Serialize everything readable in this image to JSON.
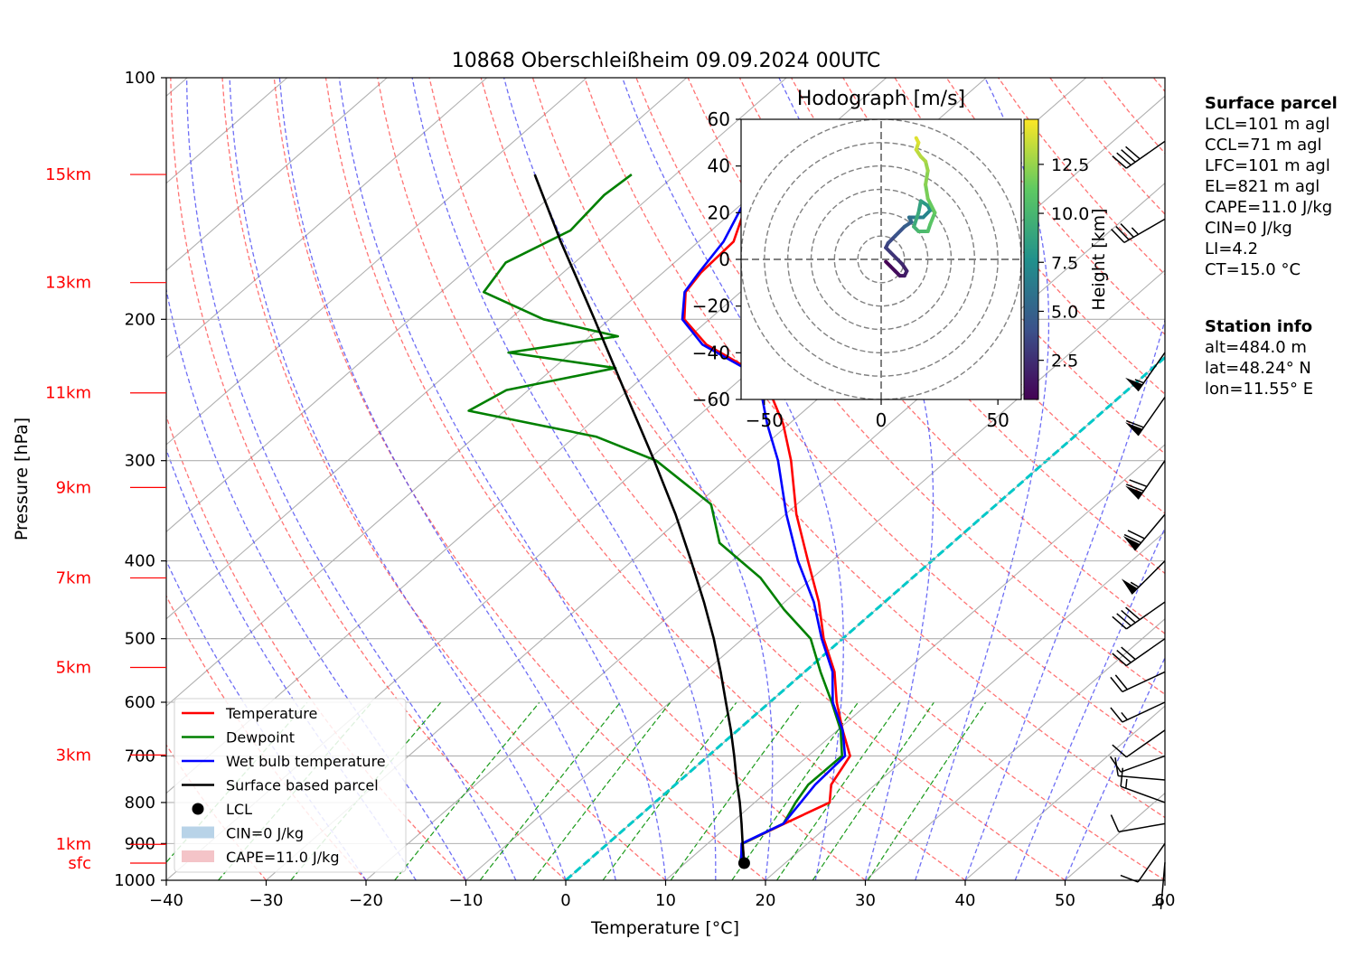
{
  "chart_data": [
    {
      "type": "line",
      "chart": "skew-T log-p diagram",
      "title": "10868 Oberschleißheim 09.09.2024 00UTC",
      "xlabel": "Temperature [°C]",
      "ylabel": "Pressure [hPa]",
      "x_scale": "linear (skewed)",
      "y_scale": "log",
      "xlim": [
        -40,
        60
      ],
      "ylim": [
        1000,
        100
      ],
      "x_ticks": [
        "−40",
        "−30",
        "−20",
        "−10",
        "0",
        "10",
        "20",
        "30",
        "40",
        "50",
        "60"
      ],
      "y_ticks": [
        "100",
        "200",
        "300",
        "400",
        "500",
        "600",
        "700",
        "800",
        "900",
        "1000"
      ],
      "grid": true,
      "height_labels": [
        {
          "label": "sfc",
          "p": 952
        },
        {
          "label": "1km",
          "p": 902
        },
        {
          "label": "3km",
          "p": 698
        },
        {
          "label": "5km",
          "p": 543
        },
        {
          "label": "7km",
          "p": 420
        },
        {
          "label": "9km",
          "p": 324
        },
        {
          "label": "11km",
          "p": 247
        },
        {
          "label": "13km",
          "p": 180
        },
        {
          "label": "15km",
          "p": 132
        }
      ],
      "series": [
        {
          "name": "Temperature",
          "color": "#ff0000",
          "points": [
            [
              952,
              15.9
            ],
            [
              900,
              13.5
            ],
            [
              850,
              15.4
            ],
            [
              800,
              17.5
            ],
            [
              760,
              15.6
            ],
            [
              700,
              14.2
            ],
            [
              650,
              10.5
            ],
            [
              600,
              6.7
            ],
            [
              550,
              3.0
            ],
            [
              500,
              -1.9
            ],
            [
              450,
              -6.6
            ],
            [
              400,
              -12.4
            ],
            [
              350,
              -18.9
            ],
            [
              300,
              -25.6
            ],
            [
              270,
              -30.6
            ],
            [
              250,
              -34.8
            ],
            [
              230,
              -40.6
            ],
            [
              215,
              -47.4
            ],
            [
              200,
              -52.5
            ],
            [
              185,
              -55.5
            ],
            [
              175,
              -56.2
            ],
            [
              160,
              -56.5
            ],
            [
              150,
              -58.3
            ],
            [
              140,
              -59.8
            ],
            [
              130,
              -62.1
            ]
          ]
        },
        {
          "name": "Dewpoint",
          "color": "#008000",
          "points": [
            [
              952,
              15.5
            ],
            [
              900,
              13.5
            ],
            [
              850,
              15.3
            ],
            [
              800,
              14.1
            ],
            [
              760,
              13.3
            ],
            [
              700,
              13.4
            ],
            [
              650,
              10.3
            ],
            [
              600,
              6.2
            ],
            [
              550,
              1.6
            ],
            [
              500,
              -3.2
            ],
            [
              460,
              -9.2
            ],
            [
              420,
              -15.2
            ],
            [
              380,
              -23.3
            ],
            [
              340,
              -28.6
            ],
            [
              300,
              -39.1
            ],
            [
              280,
              -47.9
            ],
            [
              260,
              -63.6
            ],
            [
              245,
              -62.2
            ],
            [
              230,
              -53.8
            ],
            [
              220,
              -66.3
            ],
            [
              210,
              -57.2
            ],
            [
              200,
              -66.6
            ],
            [
              185,
              -75.7
            ],
            [
              170,
              -76.9
            ],
            [
              155,
              -74.1
            ],
            [
              140,
              -74.8
            ],
            [
              132,
              -74.4
            ]
          ]
        },
        {
          "name": "Wet bulb temperature",
          "color": "#0000ff",
          "points": [
            [
              952,
              15.6
            ],
            [
              900,
              13.4
            ],
            [
              850,
              15.3
            ],
            [
              800,
              14.6
            ],
            [
              760,
              14.0
            ],
            [
              700,
              13.7
            ],
            [
              650,
              10.5
            ],
            [
              600,
              6.3
            ],
            [
              550,
              2.8
            ],
            [
              500,
              -2.1
            ],
            [
              450,
              -7.1
            ],
            [
              400,
              -13.4
            ],
            [
              350,
              -19.9
            ],
            [
              300,
              -26.9
            ],
            [
              270,
              -32.2
            ],
            [
              250,
              -35.8
            ],
            [
              230,
              -40.9
            ],
            [
              215,
              -47.8
            ],
            [
              200,
              -52.7
            ],
            [
              185,
              -55.6
            ],
            [
              175,
              -56.4
            ],
            [
              160,
              -57.5
            ],
            [
              150,
              -58.9
            ],
            [
              140,
              -60.4
            ],
            [
              130,
              -62.1
            ]
          ]
        },
        {
          "name": "Surface based parcel",
          "color": "#000000",
          "points": [
            [
              952,
              15.9
            ],
            [
              900,
              13.5
            ],
            [
              850,
              11.1
            ],
            [
              800,
              8.5
            ],
            [
              750,
              5.6
            ],
            [
              700,
              2.6
            ],
            [
              650,
              -0.7
            ],
            [
              600,
              -4.4
            ],
            [
              550,
              -8.4
            ],
            [
              500,
              -12.9
            ],
            [
              450,
              -18.1
            ],
            [
              400,
              -24.1
            ],
            [
              350,
              -31.0
            ],
            [
              300,
              -39.3
            ],
            [
              250,
              -49.3
            ],
            [
              200,
              -61.5
            ],
            [
              180,
              -67.3
            ],
            [
              160,
              -73.8
            ],
            [
              132,
              -84.1
            ]
          ]
        }
      ],
      "lcl": {
        "name": "LCL",
        "p": 952,
        "t": 15.9
      },
      "shading_legend": [
        {
          "name": "CIN=0 J/kg",
          "color": "#b8d3e8"
        },
        {
          "name": "CAPE=11.0 J/kg",
          "color": "#f4c4c8"
        }
      ],
      "legend_position": "lower-left",
      "zero_isotherm_color": "#00c8c8",
      "dry_adiabat_color": "#ff0000",
      "moist_adiabat_color": "#0000ff",
      "mixing_ratio_color": "#008000",
      "wind_barbs": [
        {
          "p": 950,
          "dir": 185,
          "speed_kt": 8
        },
        {
          "p": 900,
          "dir": 215,
          "speed_kt": 10
        },
        {
          "p": 850,
          "dir": 260,
          "speed_kt": 12
        },
        {
          "p": 800,
          "dir": 290,
          "speed_kt": 18
        },
        {
          "p": 750,
          "dir": 275,
          "speed_kt": 12
        },
        {
          "p": 700,
          "dir": 250,
          "speed_kt": 10
        },
        {
          "p": 650,
          "dir": 235,
          "speed_kt": 10
        },
        {
          "p": 600,
          "dir": 245,
          "speed_kt": 15
        },
        {
          "p": 550,
          "dir": 245,
          "speed_kt": 20
        },
        {
          "p": 500,
          "dir": 235,
          "speed_kt": 30
        },
        {
          "p": 450,
          "dir": 235,
          "speed_kt": 40
        },
        {
          "p": 400,
          "dir": 225,
          "speed_kt": 55
        },
        {
          "p": 350,
          "dir": 220,
          "speed_kt": 70
        },
        {
          "p": 300,
          "dir": 215,
          "speed_kt": 70
        },
        {
          "p": 250,
          "dir": 215,
          "speed_kt": 60
        },
        {
          "p": 220,
          "dir": 215,
          "speed_kt": 55
        },
        {
          "p": 150,
          "dir": 240,
          "speed_kt": 35
        },
        {
          "p": 120,
          "dir": 235,
          "speed_kt": 40
        }
      ]
    },
    {
      "type": "line",
      "chart": "hodograph",
      "title": "Hodograph [m/s]",
      "xlim": [
        -60,
        60
      ],
      "ylim": [
        -60,
        60
      ],
      "x_ticks": [
        "−50",
        "0",
        "50"
      ],
      "y_ticks": [
        "−60",
        "−40",
        "−20",
        "0",
        "20",
        "40",
        "60"
      ],
      "rings": [
        10,
        20,
        30,
        40,
        50,
        60
      ],
      "colorbar_label": "Height [km]",
      "colorbar_ticks": [
        "2.5",
        "5.0",
        "7.5",
        "10.0",
        "12.5"
      ],
      "colorbar_range": [
        0.5,
        14.8
      ],
      "colormap": "viridis",
      "points_u_v_height_km": [
        [
          2,
          -1,
          0.5
        ],
        [
          4,
          -3,
          0.8
        ],
        [
          6,
          -5,
          1.0
        ],
        [
          8,
          -7,
          1.3
        ],
        [
          10,
          -7,
          1.7
        ],
        [
          11,
          -5,
          2.0
        ],
        [
          9,
          -2,
          2.3
        ],
        [
          7,
          0,
          2.7
        ],
        [
          4,
          3,
          3.0
        ],
        [
          2,
          5,
          3.3
        ],
        [
          3,
          7,
          3.7
        ],
        [
          6,
          10,
          4.2
        ],
        [
          10,
          14,
          4.8
        ],
        [
          13,
          16,
          5.3
        ],
        [
          12,
          18,
          5.8
        ],
        [
          14,
          18,
          6.3
        ],
        [
          18,
          18,
          6.9
        ],
        [
          21,
          21,
          7.5
        ],
        [
          20,
          23,
          8.1
        ],
        [
          17,
          25,
          8.7
        ],
        [
          16,
          20,
          9.2
        ],
        [
          14,
          14,
          9.7
        ],
        [
          16,
          12,
          10.2
        ],
        [
          20,
          12,
          10.6
        ],
        [
          21,
          15,
          11.0
        ],
        [
          23,
          20,
          11.4
        ],
        [
          20,
          26,
          11.8
        ],
        [
          19,
          32,
          12.2
        ],
        [
          20,
          38,
          12.6
        ],
        [
          19,
          42,
          13.0
        ],
        [
          17,
          44,
          13.3
        ],
        [
          15,
          47,
          13.7
        ],
        [
          16,
          50,
          14.1
        ],
        [
          15,
          52,
          14.5
        ]
      ]
    }
  ],
  "info": {
    "surface_parcel_title": "Surface parcel",
    "surface_parcel": [
      "LCL=101 m agl",
      "CCL=71 m agl",
      "LFC=101 m agl",
      "EL=821 m agl",
      "CAPE=11.0 J/kg",
      "CIN=0 J/kg",
      "LI=4.2",
      "CT=15.0 °C"
    ],
    "station_title": "Station info",
    "station": [
      "alt=484.0 m",
      "lat=48.24° N",
      "lon=11.55° E"
    ]
  }
}
